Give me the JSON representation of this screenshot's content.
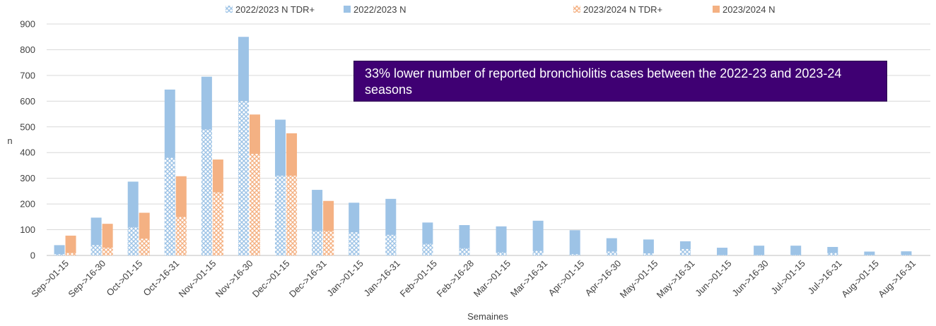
{
  "chart_data": {
    "type": "bar",
    "title": "",
    "xlabel": "Semaines",
    "ylabel": "n",
    "ylim": [
      0,
      900
    ],
    "yticks": [
      0,
      100,
      200,
      300,
      400,
      500,
      600,
      700,
      800,
      900
    ],
    "grid": true,
    "legend_position": "top",
    "categories": [
      "Sep->01-15",
      "Sep->16-30",
      "Oct->01-15",
      "Oct->16-31",
      "Nov->01-15",
      "Nov->16-30",
      "Dec->01-15",
      "Dec->16-31",
      "Jan->01-15",
      "Jan->16-31",
      "Feb->01-15",
      "Feb->16-28",
      "Mar->01-15",
      "Mar->16-31",
      "Apr->01-15",
      "Apr->16-30",
      "May->01-15",
      "May->16-31",
      "Jun->01-15",
      "Jun->16-30",
      "Jul->01-15",
      "Jul->16-31",
      "Aug->01-15",
      "Aug->16-31"
    ],
    "series": [
      {
        "name": "2022/2023 N TDR+",
        "color": "#9dc3e6",
        "pattern": true,
        "values": [
          5,
          40,
          110,
          380,
          490,
          600,
          310,
          95,
          90,
          80,
          45,
          28,
          12,
          18,
          5,
          15,
          8,
          25,
          2,
          2,
          2,
          10,
          2,
          2
        ]
      },
      {
        "name": "2022/2023 N",
        "color": "#9dc3e6",
        "pattern": false,
        "values": [
          40,
          147,
          287,
          645,
          695,
          850,
          528,
          255,
          205,
          220,
          128,
          118,
          113,
          135,
          98,
          67,
          62,
          55,
          30,
          38,
          38,
          33,
          15,
          16
        ]
      },
      {
        "name": "2023/2024 N TDR+",
        "color": "#f4b183",
        "pattern": true,
        "values": [
          10,
          30,
          65,
          150,
          245,
          395,
          310,
          95,
          null,
          null,
          null,
          null,
          null,
          null,
          null,
          null,
          null,
          null,
          null,
          null,
          null,
          null,
          null,
          null
        ]
      },
      {
        "name": "2023/2024 N",
        "color": "#f4b183",
        "pattern": false,
        "values": [
          77,
          123,
          166,
          308,
          373,
          548,
          475,
          212,
          null,
          null,
          null,
          null,
          null,
          null,
          null,
          null,
          null,
          null,
          null,
          null,
          null,
          null,
          null,
          null
        ]
      }
    ],
    "annotation": "33% lower number of reported bronchiolitis cases between the 2022-23 and 2023-24 seasons"
  }
}
